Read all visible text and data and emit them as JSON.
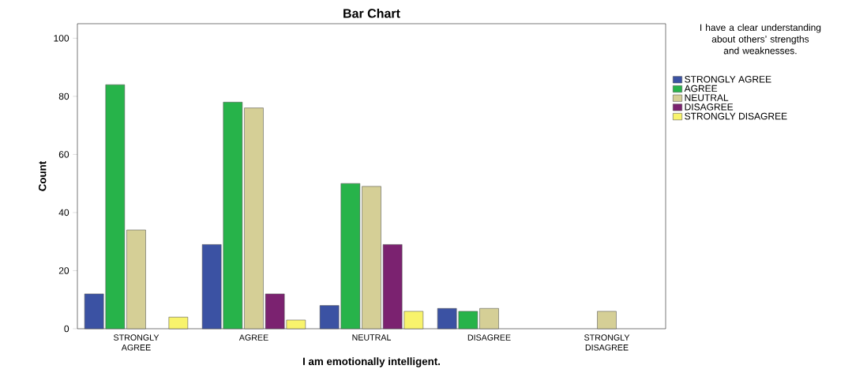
{
  "chart_data": {
    "type": "bar",
    "title": "Bar Chart",
    "xlabel": "I am emotionally intelligent.",
    "ylabel": "Count",
    "legend_title": "I have a clear understanding about others’ strengths and weaknesses.",
    "legend": "right",
    "categories": [
      "STRONGLY AGREE",
      "AGREE",
      "NEUTRAL",
      "DISAGREE",
      "STRONGLY DISAGREE"
    ],
    "ylim": [
      0,
      105
    ],
    "yticks": [
      0,
      20,
      40,
      60,
      80,
      100
    ],
    "series": [
      {
        "name": "STRONGLY AGREE",
        "color": "#3b52a3",
        "values": [
          12,
          29,
          8,
          7,
          null
        ]
      },
      {
        "name": "AGREE",
        "color": "#27b34a",
        "values": [
          84,
          78,
          50,
          6,
          null
        ]
      },
      {
        "name": "NEUTRAL",
        "color": "#d5cf96",
        "values": [
          34,
          76,
          49,
          7,
          6
        ]
      },
      {
        "name": "DISAGREE",
        "color": "#7b2270",
        "values": [
          null,
          12,
          29,
          null,
          null
        ]
      },
      {
        "name": "STRONGLY DISAGREE",
        "color": "#f8f36c",
        "values": [
          4,
          3,
          6,
          null,
          null
        ]
      }
    ]
  }
}
